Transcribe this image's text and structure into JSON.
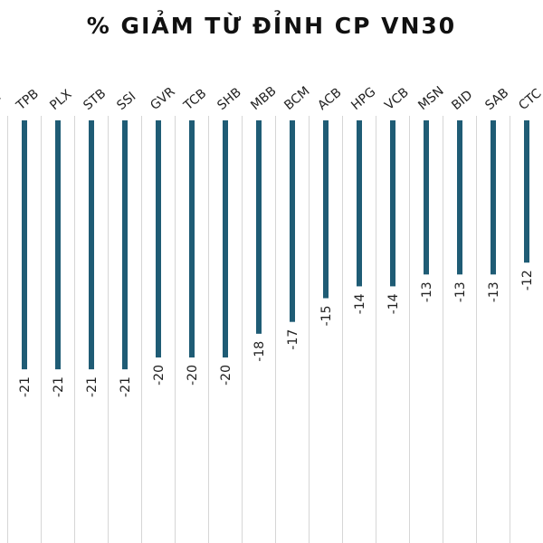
{
  "title": "% GIẢM TỪ ĐỈNH CP VN30",
  "chart_data": {
    "type": "bar",
    "title": "% GIẢM TỪ ĐỈNH CP VN30",
    "categories": [
      "GC",
      "TPB",
      "PLX",
      "STB",
      "SSI",
      "GVR",
      "TCB",
      "SHB",
      "MBB",
      "BCM",
      "ACB",
      "HPG",
      "VCB",
      "MSN",
      "BID",
      "SAB",
      "CTC"
    ],
    "values": [
      null,
      -21,
      -21,
      -21,
      -21,
      -20,
      -20,
      -20,
      -18,
      -17,
      -15,
      -14,
      -14,
      -13,
      -13,
      -13,
      -12
    ],
    "data_labels": [
      "",
      "-21",
      "-21",
      "-21",
      "-21",
      "-20",
      "-20",
      "-20",
      "-18",
      "-17",
      "-15",
      "-14",
      "-14",
      "-13",
      "-13",
      "-13",
      "-12"
    ],
    "xlabel": "",
    "ylabel": "",
    "orientation": "vertical, bars hang downward from the top axis",
    "grid": "vertical gridlines between categories",
    "legend": "none",
    "colors": {
      "bar": "#1f5c75",
      "grid": "#d6d6d6",
      "text": "#222222",
      "title": "#111111"
    }
  }
}
